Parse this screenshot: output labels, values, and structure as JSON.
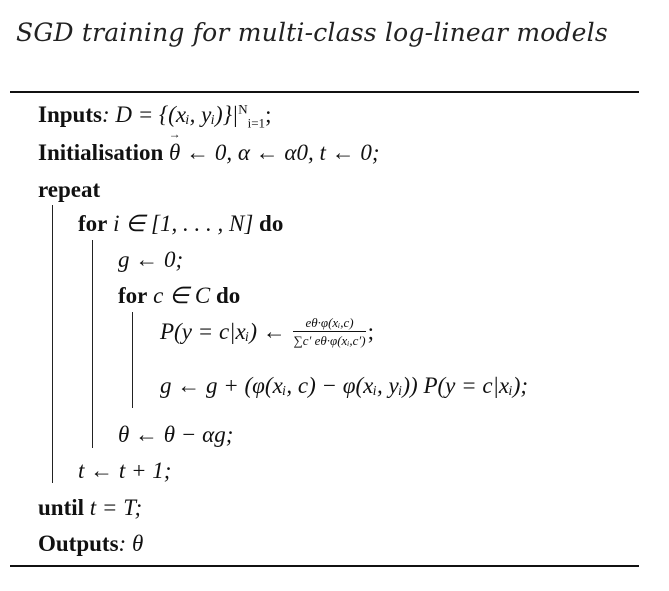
{
  "title": "SGD training for multi-class log-linear models",
  "lines": {
    "inputs_kw": "Inputs",
    "inputs_expr": ": D = {(xᵢ, yᵢ)}|",
    "inputs_sub": "i=1",
    "inputs_sup": "N",
    "inputs_end": ";",
    "init_kw": "Initialisation",
    "init_expr": " ← 0, α ← α0, t ← 0;",
    "repeat_kw": "repeat",
    "for1_kw": "for",
    "for1_expr": " i ∈ [1, . . . , N] ",
    "for1_do": "do",
    "g_reset": "g ← 0;",
    "for2_kw": "for",
    "for2_expr": " c ∈ C ",
    "for2_do": "do",
    "prob_lhs": "P(y = c|xᵢ) ←",
    "prob_num": "eθ·φ(xᵢ,c)",
    "prob_den": "∑c′ eθ·φ(xᵢ,c′)",
    "prob_end": ";",
    "grad_expr": "g ← g + (φ(xᵢ, c) − φ(xᵢ, yᵢ)) P(y = c|xᵢ);",
    "update": "θ ← θ − αg;",
    "t_inc": "t ← t + 1;",
    "until_kw": "until",
    "until_expr": " t = T;",
    "outputs_kw": "Outputs",
    "outputs_expr": ": θ"
  }
}
